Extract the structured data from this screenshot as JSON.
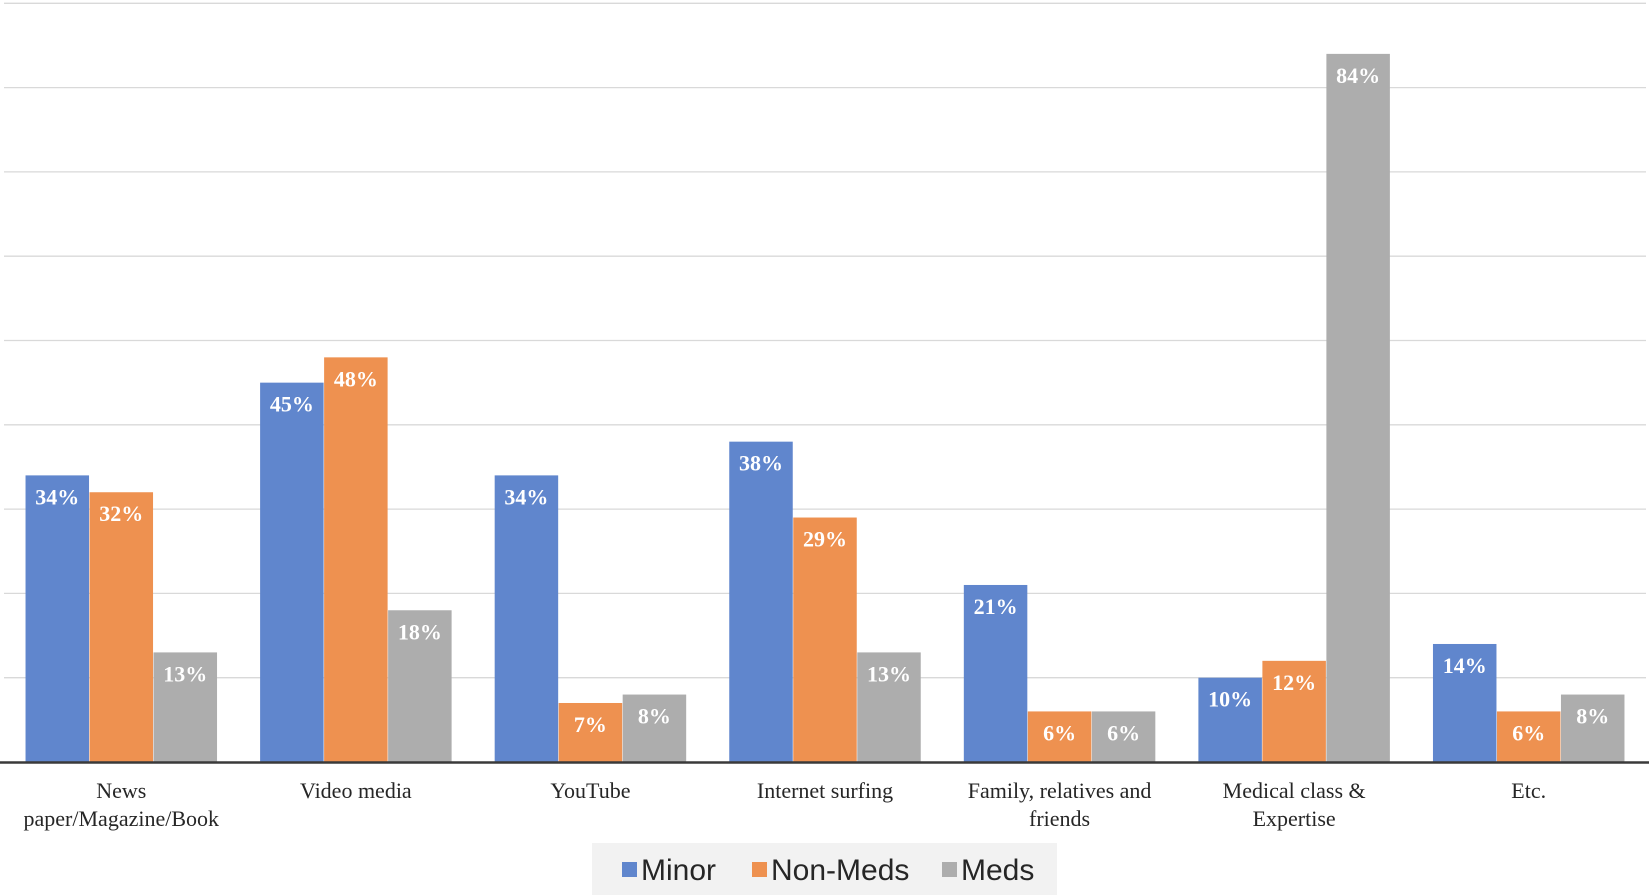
{
  "chart_data": {
    "type": "bar",
    "categories": [
      [
        "News",
        "paper/Magazine/Book"
      ],
      [
        "Video media"
      ],
      [
        "YouTube"
      ],
      [
        "Internet surfing"
      ],
      [
        "Family, relatives and",
        "friends"
      ],
      [
        "Medical class &",
        "Expertise"
      ],
      [
        "Etc."
      ]
    ],
    "series": [
      {
        "name": "Minor",
        "color": "#6086CD",
        "values": [
          34,
          45,
          34,
          38,
          21,
          10,
          14
        ],
        "labels": [
          "34%",
          "45%",
          "34%",
          "38%",
          "21%",
          "10%",
          "14%"
        ]
      },
      {
        "name": "Non-Meds",
        "color": "#EE9150",
        "values": [
          32,
          48,
          7,
          29,
          6,
          12,
          6
        ],
        "labels": [
          "32%",
          "48%",
          "7%",
          "29%",
          "6%",
          "12%",
          "6%"
        ]
      },
      {
        "name": "Meds",
        "color": "#ADADAD",
        "values": [
          13,
          18,
          8,
          13,
          6,
          84,
          8
        ],
        "labels": [
          "13%",
          "18%",
          "8%",
          "13%",
          "6%",
          "84%",
          "8%"
        ]
      }
    ],
    "ylim": [
      0,
      90
    ],
    "ytick_step": 10,
    "y_tick_labels_shown": false,
    "grid": true,
    "legend_position": "bottom",
    "title": "",
    "xlabel": "",
    "ylabel": ""
  }
}
